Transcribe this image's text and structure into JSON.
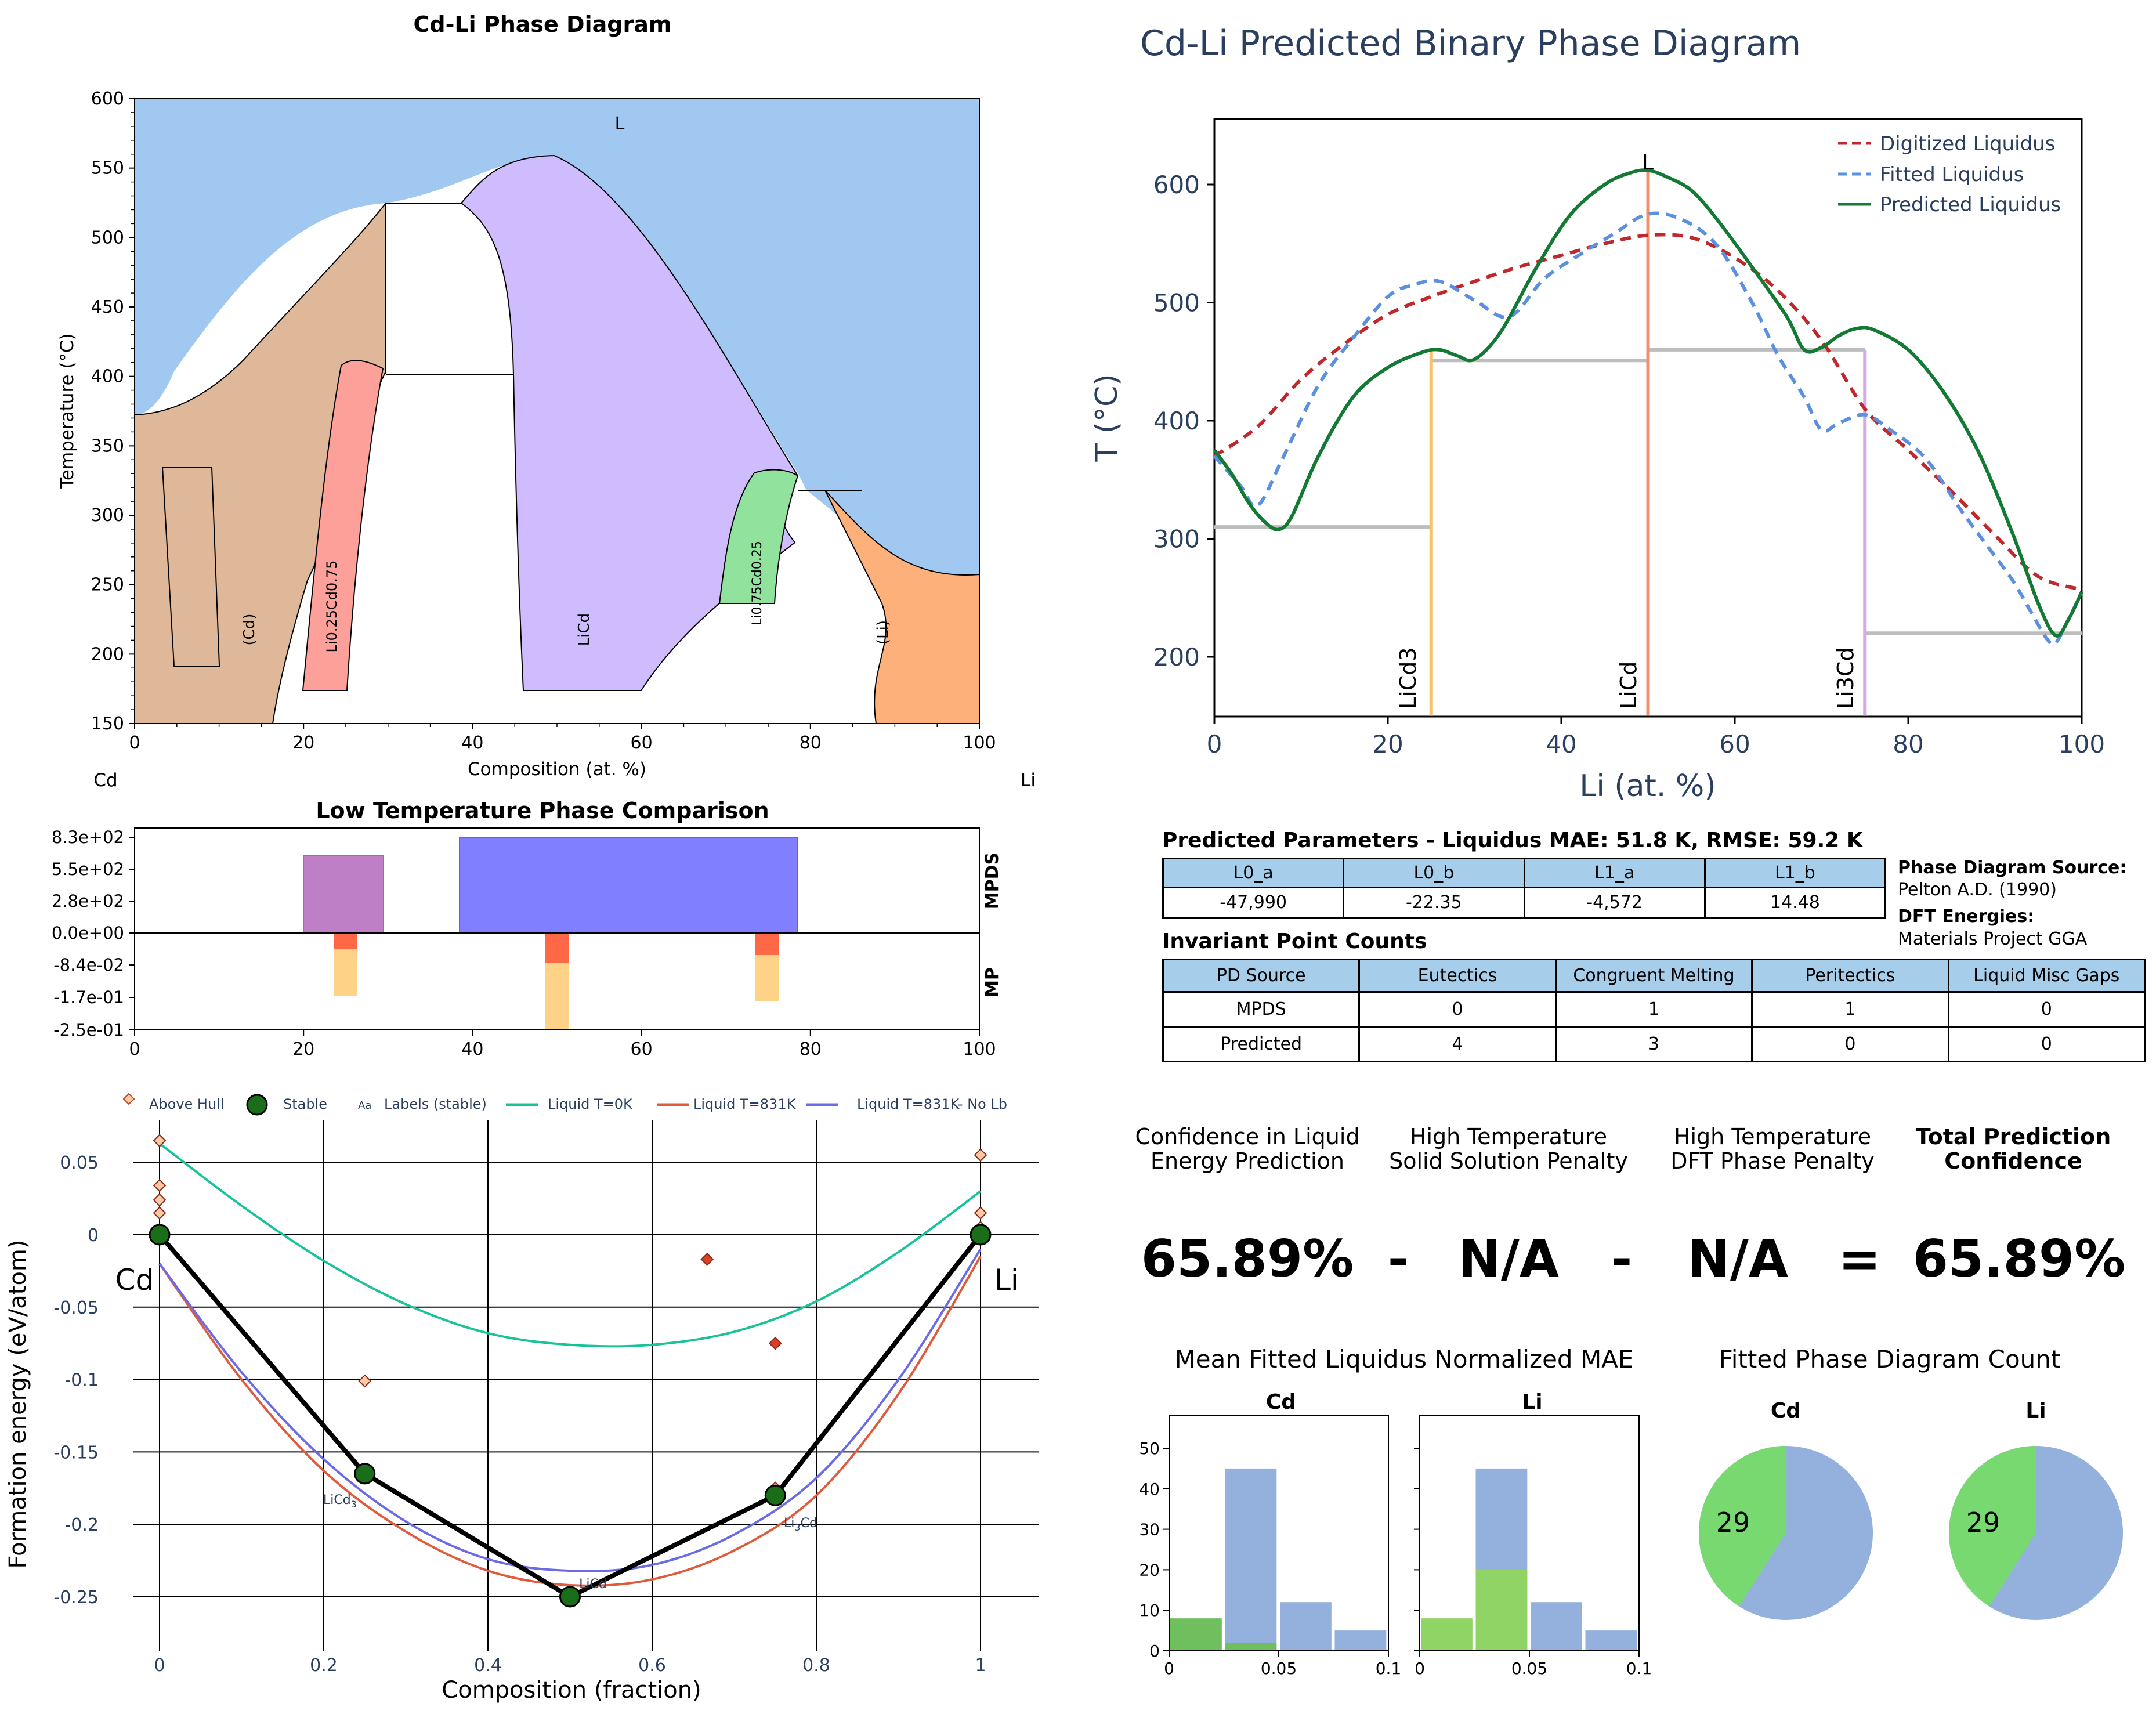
{
  "panel_pd": {
    "title": "Cd-Li Phase Diagram",
    "xlabel": "Composition (at. %)",
    "ylabel": "Temperature (°C)",
    "left_element": "Cd",
    "right_element": "Li",
    "x_ticks": [
      "0",
      "20",
      "40",
      "60",
      "80",
      "100"
    ],
    "y_ticks": [
      "150",
      "200",
      "250",
      "300",
      "350",
      "400",
      "450",
      "500",
      "550",
      "600"
    ],
    "region_labels": {
      "L": "L",
      "cd": "(Cd)",
      "li": "(Li)",
      "licd": "LiCd",
      "li025": "Li0.25Cd0.75",
      "li075": "Li0.75Cd0.25"
    },
    "colors": {
      "liquid": "#a0c8f0",
      "cd": "#deb898",
      "li": "#fdb07a",
      "licd": "#cfbcff",
      "li025": "#fca099",
      "li075": "#90e29c"
    }
  },
  "panel_low": {
    "title": "Low Temperature Phase Comparison",
    "y_ticks": [
      "8.3e+02",
      "5.5e+02",
      "2.8e+02",
      "0.0e+00",
      "-8.4e-02",
      "-1.7e-01",
      "-2.5e-01"
    ],
    "x_ticks": [
      "0",
      "20",
      "40",
      "60",
      "80",
      "100"
    ],
    "right_labels": {
      "top": "MPDS",
      "bottom": "MP"
    }
  },
  "panel_hull": {
    "xlabel": "Composition (fraction)",
    "ylabel": "Formation energy (eV/atom)",
    "x_ticks": [
      "0",
      "0.2",
      "0.4",
      "0.6",
      "0.8",
      "1"
    ],
    "y_ticks": [
      "0.05",
      "0",
      "-0.05",
      "-0.1",
      "-0.15",
      "-0.2",
      "-0.25"
    ],
    "legend": [
      "Above Hull",
      "Stable",
      "Labels (stable)",
      "Liquid T=0K",
      "Liquid T=831K",
      "Liquid T=831K- No Lb"
    ],
    "legend_aa": "Aa",
    "end_labels": {
      "left": "Cd",
      "right": "Li"
    },
    "stable_labels": {
      "licd3": "LiCd3",
      "licd": "LiCd",
      "li3cd": "Li3Cd"
    },
    "colors": {
      "t0": "#19c39a",
      "t831": "#e05a3c",
      "nolb": "#6b6be6",
      "stable": "#1a6e1a"
    }
  },
  "panel_pred": {
    "title": "Cd-Li Predicted Binary Phase Diagram",
    "xlabel": "Li (at. %)",
    "ylabel": "T (°C)",
    "x_ticks": [
      "0",
      "20",
      "40",
      "60",
      "80",
      "100"
    ],
    "y_ticks": [
      "200",
      "300",
      "400",
      "500",
      "600"
    ],
    "legend": [
      "Digitized Liquidus",
      "Fitted Liquidus",
      "Predicted Liquidus"
    ],
    "top_label": "L",
    "phase_labels": [
      "LiCd3",
      "LiCd",
      "Li3Cd"
    ],
    "colors": {
      "digitized": "#c0282c",
      "fitted": "#5b8fe0",
      "predicted": "#137a34",
      "licd3": "#f5c468",
      "licd": "#f0906a",
      "li3cd": "#d6a8ea"
    }
  },
  "params": {
    "title": "Predicted Parameters - Liquidus MAE: 51.8 K, RMSE: 59.2 K",
    "headers": [
      "L0_a",
      "L0_b",
      "L1_a",
      "L1_b"
    ],
    "values": [
      "-47,990",
      "-22.35",
      "-4,572",
      "14.48"
    ]
  },
  "source": {
    "pd_label": "Phase Diagram Source:",
    "pd_value": "Pelton A.D. (1990)",
    "dft_label": "DFT Energies:",
    "dft_value": "Materials Project GGA"
  },
  "invariants": {
    "title": "Invariant Point Counts",
    "headers": [
      "PD Source",
      "Eutectics",
      "Congruent Melting",
      "Peritectics",
      "Liquid Misc Gaps"
    ],
    "rows": [
      [
        "MPDS",
        "0",
        "1",
        "1",
        "0"
      ],
      [
        "Predicted",
        "4",
        "3",
        "0",
        "0"
      ]
    ]
  },
  "confidence": {
    "h1a": "Confidence in Liquid",
    "h1b": "Energy Prediction",
    "h2a": "High Temperature",
    "h2b": "Solid Solution Penalty",
    "h3a": "High Temperature",
    "h3b": "DFT Phase Penalty",
    "h4a": "Total Prediction",
    "h4b": "Confidence",
    "v1": "65.89%",
    "op1": "-",
    "v2": "N/A",
    "op2": "-",
    "v3": "N/A",
    "op3": "=",
    "v4": "65.89%"
  },
  "mae": {
    "title": "Mean Fitted Liquidus Normalized MAE",
    "cd_title": "Cd",
    "li_title": "Li",
    "y_ticks": [
      "0",
      "10",
      "20",
      "30",
      "40",
      "50"
    ],
    "x_ticks": [
      "0",
      "0.05",
      "0.1"
    ]
  },
  "count": {
    "title": "Fitted Phase Diagram Count",
    "cd_title": "Cd",
    "li_title": "Li",
    "cd_value": "29",
    "li_value": "29"
  },
  "chart_data": [
    {
      "type": "area",
      "title": "Cd-Li Phase Diagram",
      "xlabel": "Composition (at. %)",
      "ylabel": "Temperature (°C)",
      "xlim": [
        0,
        100
      ],
      "ylim": [
        150,
        600
      ],
      "series": [
        {
          "name": "Liquidus",
          "x": [
            0,
            5,
            10,
            20,
            30,
            40,
            50,
            60,
            70,
            79,
            82,
            90,
            100
          ],
          "y": [
            370,
            395,
            440,
            495,
            540,
            552,
            558,
            495,
            410,
            325,
            305,
            275,
            257
          ]
        }
      ]
    },
    {
      "type": "bar",
      "title": "Low Temperature Phase Comparison",
      "series": [
        {
          "name": "MPDS",
          "x": [
            [
              20,
              29.5
            ],
            [
              38.5,
              78.5
            ]
          ],
          "values": [
            690,
            830
          ]
        },
        {
          "name": "MP",
          "x": [
            24.5,
            50.2,
            75.2
          ],
          "values": [
            -0.25,
            -0.25,
            -0.25
          ]
        }
      ]
    },
    {
      "type": "scatter",
      "xlabel": "Composition (fraction)",
      "ylabel": "Formation energy (eV/atom)",
      "xlim": [
        -0.03,
        1.03
      ],
      "ylim": [
        -0.27,
        0.08
      ],
      "series": [
        {
          "name": "Stable",
          "x": [
            0,
            0.25,
            0.5,
            0.75,
            1
          ],
          "y": [
            0,
            -0.165,
            -0.25,
            -0.18,
            0
          ]
        },
        {
          "name": "Above Hull",
          "x": [
            0,
            0,
            0,
            0,
            0.25,
            0.667,
            0.75,
            0.75,
            1,
            1,
            1
          ],
          "y": [
            0.065,
            0.034,
            0.024,
            0.015,
            -0.101,
            -0.017,
            -0.075,
            -0.175,
            0.055,
            0.015,
            0.005
          ]
        },
        {
          "name": "Liquid T=0K",
          "x": [
            0,
            0.1,
            0.2,
            0.3,
            0.4,
            0.5,
            0.6,
            0.7,
            0.8,
            0.9,
            1
          ],
          "y": [
            0.063,
            0.02,
            -0.018,
            -0.048,
            -0.068,
            -0.076,
            -0.076,
            -0.067,
            -0.046,
            -0.012,
            0.03
          ]
        },
        {
          "name": "Liquid T=831K",
          "x": [
            0,
            0.1,
            0.2,
            0.3,
            0.4,
            0.5,
            0.6,
            0.7,
            0.8,
            0.9,
            1
          ],
          "y": [
            -0.02,
            -0.1,
            -0.163,
            -0.205,
            -0.232,
            -0.242,
            -0.238,
            -0.218,
            -0.18,
            -0.11,
            -0.015
          ]
        },
        {
          "name": "Liquid T=831K- No Lb",
          "x": [
            0,
            0.1,
            0.2,
            0.3,
            0.4,
            0.5,
            0.6,
            0.7,
            0.8,
            0.9,
            1
          ],
          "y": [
            -0.02,
            -0.095,
            -0.155,
            -0.198,
            -0.224,
            -0.232,
            -0.228,
            -0.207,
            -0.168,
            -0.1,
            -0.01
          ]
        }
      ]
    },
    {
      "type": "line",
      "title": "Cd-Li Predicted Binary Phase Diagram",
      "xlabel": "Li (at. %)",
      "ylabel": "T (°C)",
      "xlim": [
        0,
        100
      ],
      "ylim": [
        150,
        680
      ],
      "series": [
        {
          "name": "Digitized Liquidus",
          "x": [
            0,
            5,
            10,
            15,
            20,
            25,
            30,
            35,
            40,
            45,
            50,
            55,
            60,
            65,
            70,
            75,
            80,
            85,
            90,
            95,
            100
          ],
          "y": [
            370,
            395,
            435,
            465,
            490,
            505,
            518,
            530,
            540,
            550,
            557,
            555,
            538,
            510,
            468,
            410,
            375,
            340,
            303,
            268,
            257
          ]
        },
        {
          "name": "Fitted Liquidus",
          "x": [
            0,
            3,
            5,
            8,
            12,
            16,
            20,
            23,
            26,
            30,
            34,
            38,
            42,
            46,
            50,
            54,
            58,
            62,
            65,
            68,
            70,
            72,
            75,
            78,
            82,
            86,
            89,
            92,
            94,
            96,
            97,
            98.5,
            100
          ],
          "y": [
            370,
            345,
            328,
            370,
            430,
            470,
            505,
            515,
            518,
            502,
            488,
            520,
            540,
            558,
            575,
            570,
            548,
            500,
            455,
            420,
            392,
            398,
            405,
            392,
            368,
            325,
            295,
            265,
            240,
            215,
            212,
            232,
            255
          ]
        },
        {
          "name": "Predicted Liquidus",
          "x": [
            0,
            2,
            4,
            6,
            7.5,
            9,
            12,
            16,
            20,
            24,
            26,
            28,
            30,
            33,
            37,
            41,
            45,
            48,
            50,
            52,
            55,
            58,
            62,
            66,
            68,
            70,
            72,
            74,
            76,
            80,
            84,
            88,
            92,
            95,
            97,
            98.5,
            100
          ],
          "y": [
            375,
            355,
            330,
            313,
            308,
            320,
            370,
            420,
            445,
            458,
            460,
            455,
            452,
            475,
            528,
            574,
            600,
            610,
            612,
            607,
            595,
            570,
            530,
            488,
            460,
            462,
            472,
            478,
            477,
            460,
            425,
            375,
            305,
            245,
            218,
            232,
            255
          ]
        },
        {
          "name": "LiCd3",
          "x": [
            25,
            25
          ],
          "y": [
            150,
            458
          ]
        },
        {
          "name": "LiCd",
          "x": [
            50,
            50
          ],
          "y": [
            150,
            612
          ]
        },
        {
          "name": "Li3Cd",
          "x": [
            75,
            75
          ],
          "y": [
            150,
            460
          ]
        }
      ]
    },
    {
      "type": "bar",
      "title": "Mean Fitted Liquidus Normalized MAE",
      "categories": [
        "Cd",
        "Li"
      ],
      "series": [
        {
          "name": "Cd",
          "x": [
            0,
            0.025,
            0.05,
            0.075
          ],
          "values": [
            8,
            45,
            12,
            5
          ]
        },
        {
          "name": "Li",
          "x": [
            0,
            0.025,
            0.05,
            0.075
          ],
          "values": [
            8,
            45,
            12,
            5
          ]
        }
      ]
    },
    {
      "type": "pie",
      "title": "Fitted Phase Diagram Count",
      "categories": [
        "Cd",
        "Li"
      ],
      "values": [
        29,
        29
      ]
    }
  ]
}
